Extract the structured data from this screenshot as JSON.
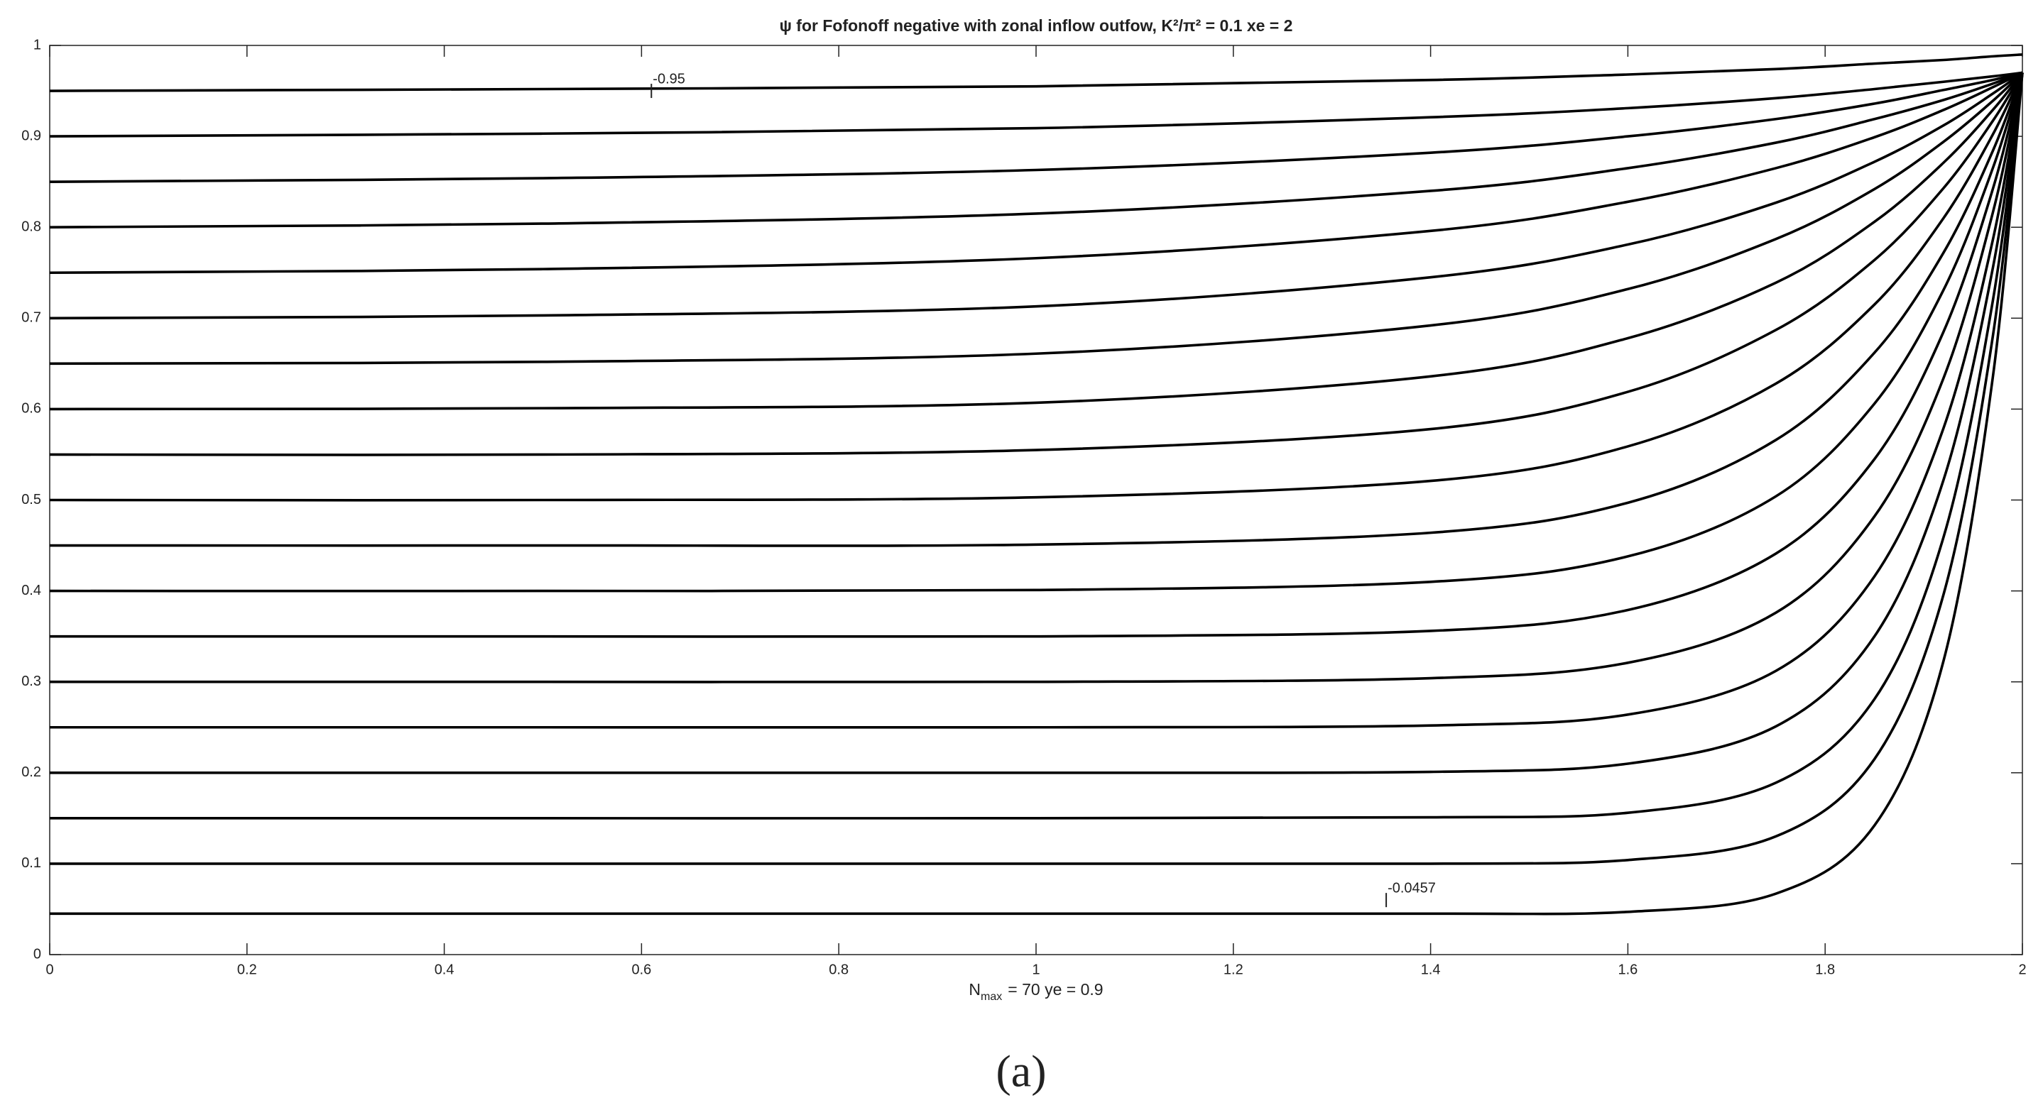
{
  "chart_data": {
    "type": "line",
    "title": "ψ for Fofonoff negative with zonal inflow outfow, K²/π² = 0.1 xe = 2",
    "xlabel": {
      "base": "N",
      "sub": "max",
      "rest": "= 70   ye = 0.9"
    },
    "panel_label": "(a)",
    "xlim": [
      0,
      2
    ],
    "ylim": [
      0,
      1
    ],
    "xticks": [
      0,
      0.2,
      0.4,
      0.6,
      0.8,
      1,
      1.2,
      1.4,
      1.6,
      1.8,
      2
    ],
    "yticks": [
      0,
      0.1,
      0.2,
      0.3,
      0.4,
      0.5,
      0.6,
      0.7,
      0.8,
      0.9,
      1
    ],
    "grid": false,
    "color": "#000000",
    "x": [
      0,
      0.5,
      1,
      1.4,
      1.6,
      1.75,
      1.85,
      1.92,
      1.97,
      2
    ],
    "series": [
      {
        "values": [
          0.045,
          0.045,
          0.045,
          0.045,
          0.047,
          0.067,
          0.142,
          0.323,
          0.635,
          0.97
        ]
      },
      {
        "values": [
          0.1,
          0.1,
          0.1,
          0.1,
          0.104,
          0.13,
          0.215,
          0.396,
          0.68,
          0.97
        ]
      },
      {
        "values": [
          0.15,
          0.15,
          0.15,
          0.151,
          0.156,
          0.189,
          0.281,
          0.459,
          0.719,
          0.97
        ]
      },
      {
        "values": [
          0.2,
          0.2,
          0.2,
          0.201,
          0.21,
          0.251,
          0.35,
          0.522,
          0.755,
          0.97
        ]
      },
      {
        "values": [
          0.25,
          0.25,
          0.25,
          0.252,
          0.264,
          0.312,
          0.416,
          0.579,
          0.786,
          0.97
        ]
      },
      {
        "values": [
          0.3,
          0.3,
          0.3,
          0.304,
          0.321,
          0.376,
          0.482,
          0.634,
          0.816,
          0.97
        ]
      },
      {
        "values": [
          0.35,
          0.35,
          0.35,
          0.356,
          0.379,
          0.441,
          0.545,
          0.685,
          0.842,
          0.97
        ]
      },
      {
        "values": [
          0.4,
          0.4,
          0.401,
          0.41,
          0.438,
          0.504,
          0.606,
          0.731,
          0.865,
          0.97
        ]
      },
      {
        "values": [
          0.45,
          0.45,
          0.451,
          0.464,
          0.497,
          0.566,
          0.662,
          0.772,
          0.884,
          0.97
        ]
      },
      {
        "values": [
          0.5,
          0.5,
          0.503,
          0.521,
          0.559,
          0.628,
          0.715,
          0.81,
          0.902,
          0.97
        ]
      },
      {
        "values": [
          0.55,
          0.55,
          0.555,
          0.578,
          0.619,
          0.687,
          0.764,
          0.843,
          0.917,
          0.97
        ]
      },
      {
        "values": [
          0.6,
          0.601,
          0.607,
          0.636,
          0.678,
          0.739,
          0.806,
          0.871,
          0.929,
          0.97
        ]
      },
      {
        "values": [
          0.65,
          0.652,
          0.661,
          0.692,
          0.732,
          0.787,
          0.842,
          0.894,
          0.939,
          0.97
        ]
      },
      {
        "values": [
          0.7,
          0.703,
          0.713,
          0.745,
          0.781,
          0.827,
          0.872,
          0.912,
          0.947,
          0.97
        ]
      },
      {
        "values": [
          0.75,
          0.754,
          0.766,
          0.796,
          0.828,
          0.865,
          0.899,
          0.929,
          0.954,
          0.97
        ]
      },
      {
        "values": [
          0.8,
          0.804,
          0.815,
          0.84,
          0.865,
          0.893,
          0.919,
          0.94,
          0.958,
          0.97
        ]
      },
      {
        "values": [
          0.85,
          0.854,
          0.863,
          0.882,
          0.9,
          0.919,
          0.936,
          0.951,
          0.962,
          0.97
        ]
      },
      {
        "values": [
          0.9,
          0.903,
          0.909,
          0.921,
          0.931,
          0.942,
          0.952,
          0.96,
          0.966,
          0.97
        ]
      },
      {
        "values": [
          0.95,
          0.952,
          0.955,
          0.962,
          0.968,
          0.974,
          0.98,
          0.984,
          0.988,
          0.99
        ]
      }
    ],
    "annotations": [
      {
        "text": "-0.95",
        "x": 0.61,
        "y": 0.95
      },
      {
        "text": "-0.0457",
        "x": 1.355,
        "y": 0.06
      }
    ]
  }
}
